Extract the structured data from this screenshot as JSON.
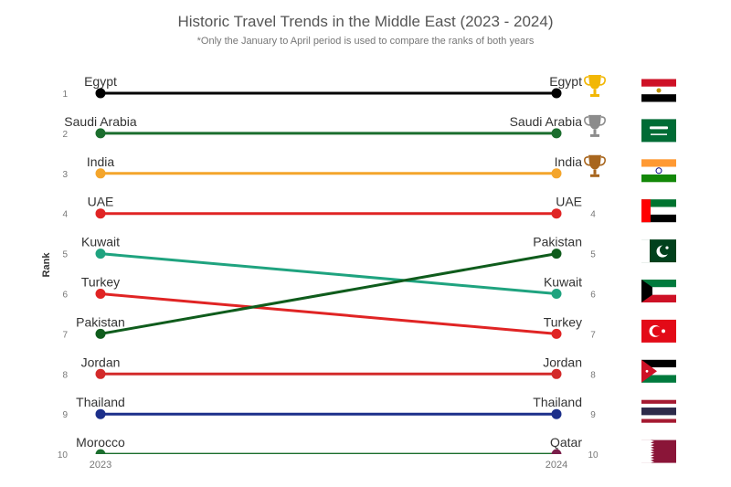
{
  "header": {
    "title": "Historic Travel Trends in the Middle East (2023 - 2024)",
    "subtitle": "*Only the January to April period is used to compare the ranks of both years"
  },
  "chart_data": {
    "type": "line",
    "chart_kind": "slope / bump chart",
    "ylabel": "Rank",
    "x": [
      "2023",
      "2024"
    ],
    "rank_ticks": [
      "1",
      "2",
      "3",
      "4",
      "5",
      "6",
      "7",
      "8",
      "9",
      "10"
    ],
    "y_axis": {
      "min": 1,
      "max": 10,
      "inverted": true
    },
    "grid": false,
    "legend": "none",
    "series": [
      {
        "name": "Egypt",
        "rank_2023": 1,
        "rank_2024": 1,
        "label_2023": "Egypt",
        "label_2024": "Egypt",
        "color": "#000000"
      },
      {
        "name": "Saudi Arabia",
        "rank_2023": 2,
        "rank_2024": 2,
        "label_2023": "Saudi Arabia",
        "label_2024": "Saudi Arabia",
        "color": "#1b6e2e"
      },
      {
        "name": "India",
        "rank_2023": 3,
        "rank_2024": 3,
        "label_2023": "India",
        "label_2024": "India",
        "color": "#f4a52b"
      },
      {
        "name": "UAE",
        "rank_2023": 4,
        "rank_2024": 4,
        "label_2023": "UAE",
        "label_2024": "UAE",
        "color": "#e02424"
      },
      {
        "name": "Kuwait",
        "rank_2023": 5,
        "rank_2024": 6,
        "label_2023": "Kuwait",
        "label_2024": "Kuwait",
        "color": "#1fa37f"
      },
      {
        "name": "Turkey",
        "rank_2023": 6,
        "rank_2024": 7,
        "label_2023": "Turkey",
        "label_2024": "Turkey",
        "color": "#e02424"
      },
      {
        "name": "Pakistan",
        "rank_2023": 7,
        "rank_2024": 5,
        "label_2023": "Pakistan",
        "label_2024": "Pakistan",
        "color": "#0f5c1c"
      },
      {
        "name": "Jordan",
        "rank_2023": 8,
        "rank_2024": 8,
        "label_2023": "Jordan",
        "label_2024": "Jordan",
        "color": "#d32a2a"
      },
      {
        "name": "Thailand",
        "rank_2023": 9,
        "rank_2024": 9,
        "label_2023": "Thailand",
        "label_2024": "Thailand",
        "color": "#1c2f8a"
      },
      {
        "name": "Morocco / Qatar",
        "rank_2023": 10,
        "rank_2024": 10,
        "label_2023": "Morocco",
        "label_2024": "Qatar",
        "color_2023": "#1b6e2e",
        "color_2024": "#7a1f4a"
      }
    ],
    "trophies": [
      {
        "rank": 1,
        "icon": "gold-trophy-icon",
        "color": "#f2b705"
      },
      {
        "rank": 2,
        "icon": "silver-trophy-icon",
        "color": "#8c8c8c"
      },
      {
        "rank": 3,
        "icon": "bronze-trophy-icon",
        "color": "#a8661e"
      }
    ],
    "right_rank_ticks": [
      "4",
      "5",
      "6",
      "7",
      "8",
      "9",
      "10"
    ],
    "flags": [
      {
        "rank": 1,
        "icon": "egypt-flag-icon"
      },
      {
        "rank": 2,
        "icon": "saudi-arabia-flag-icon"
      },
      {
        "rank": 3,
        "icon": "india-flag-icon"
      },
      {
        "rank": 4,
        "icon": "uae-flag-icon"
      },
      {
        "rank": 5,
        "icon": "pakistan-flag-icon"
      },
      {
        "rank": 6,
        "icon": "kuwait-flag-icon"
      },
      {
        "rank": 7,
        "icon": "turkey-flag-icon"
      },
      {
        "rank": 8,
        "icon": "jordan-flag-icon"
      },
      {
        "rank": 9,
        "icon": "thailand-flag-icon"
      },
      {
        "rank": 10,
        "icon": "qatar-flag-icon"
      }
    ]
  }
}
